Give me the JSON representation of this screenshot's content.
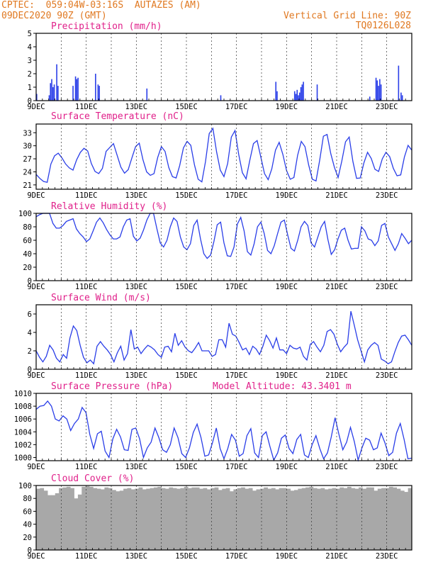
{
  "header": {
    "station": "CPTEC:  059:04W-03:16S  AUTAZES (AM)",
    "datetime": "09DEC2020 90Z (GMT)",
    "grid_line": "Vertical Grid Line: 90Z",
    "code": "TQ0126L028"
  },
  "colors": {
    "header": "#e07820",
    "title": "#e0208a",
    "series": "#2a3ee8",
    "cloud": "#a8a8a8",
    "axis": "#000000"
  },
  "x_tick_labels": [
    "9DEC",
    "11DEC",
    "13DEC",
    "15DEC",
    "17DEC",
    "19DEC",
    "21DEC",
    "23DEC"
  ],
  "model_altitude": "Model Altitude: 43.3401 m",
  "chart_data": [
    {
      "type": "bar",
      "title": "Precipitation (mm/h)",
      "ylim": [
        0,
        5
      ],
      "yticks": [
        0,
        1,
        2,
        3,
        4,
        5
      ],
      "x_start_day": 9,
      "bars": [
        [
          9.0,
          0.5
        ],
        [
          9.5,
          0.4
        ],
        [
          9.55,
          1.3
        ],
        [
          9.6,
          1.6
        ],
        [
          9.65,
          1.0
        ],
        [
          9.7,
          1.2
        ],
        [
          9.8,
          2.7
        ],
        [
          9.85,
          1.1
        ],
        [
          10.45,
          1.1
        ],
        [
          10.55,
          1.8
        ],
        [
          10.6,
          1.6
        ],
        [
          10.65,
          1.7
        ],
        [
          11.35,
          2.0
        ],
        [
          11.45,
          1.2
        ],
        [
          11.5,
          1.1
        ],
        [
          13.4,
          0.9
        ],
        [
          16.35,
          0.4
        ],
        [
          18.55,
          1.4
        ],
        [
          18.6,
          0.7
        ],
        [
          19.3,
          0.7
        ],
        [
          19.35,
          0.5
        ],
        [
          19.4,
          0.8
        ],
        [
          19.45,
          0.4
        ],
        [
          19.5,
          0.6
        ],
        [
          19.55,
          1.0
        ],
        [
          19.6,
          1.2
        ],
        [
          19.65,
          1.4
        ],
        [
          20.2,
          1.2
        ],
        [
          22.3,
          0.3
        ],
        [
          22.55,
          1.7
        ],
        [
          22.6,
          1.5
        ],
        [
          22.65,
          1.1
        ],
        [
          22.7,
          1.6
        ],
        [
          22.75,
          1.2
        ],
        [
          23.45,
          2.6
        ],
        [
          23.55,
          0.6
        ],
        [
          23.6,
          0.4
        ]
      ]
    },
    {
      "type": "line",
      "title": "Surface Temperature (nC)",
      "ylim": [
        20,
        35
      ],
      "yticks": [
        21,
        24,
        27,
        30,
        33
      ],
      "x_start_day": 9,
      "values": [
        23.4,
        22.5,
        21.8,
        21.6,
        25.8,
        27.7,
        28.3,
        27.2,
        25.8,
        24.9,
        24.4,
        26.8,
        28.5,
        29.4,
        28.8,
        25.9,
        24.1,
        23.6,
        24.8,
        28.7,
        29.6,
        30.5,
        27.8,
        25.1,
        23.7,
        24.5,
        27.2,
        29.8,
        30.6,
        26.8,
        24.0,
        23.2,
        23.6,
        27.3,
        29.8,
        28.7,
        25.0,
        22.9,
        22.6,
        25.5,
        29.5,
        31.0,
        30.1,
        25.6,
        22.3,
        21.7,
        26.4,
        32.8,
        34.0,
        28.6,
        24.4,
        22.9,
        25.9,
        32.0,
        33.5,
        28.0,
        23.8,
        22.4,
        26.6,
        30.5,
        31.2,
        27.4,
        23.6,
        22.2,
        24.7,
        29.0,
        30.8,
        28.0,
        24.3,
        22.3,
        22.7,
        27.8,
        31.0,
        29.8,
        25.6,
        22.3,
        21.9,
        26.7,
        32.2,
        32.6,
        28.2,
        25.0,
        22.7,
        26.5,
        30.9,
        32.0,
        26.4,
        22.5,
        22.6,
        26.1,
        28.5,
        27.1,
        24.6,
        24.1,
        27.0,
        28.5,
        27.5,
        24.8,
        23.1,
        23.3,
        27.4,
        30.1,
        29.0
      ]
    },
    {
      "type": "line",
      "title": "Relative Humidity (%)",
      "ylim": [
        0,
        100
      ],
      "yticks": [
        0,
        20,
        40,
        60,
        80,
        100
      ],
      "x_start_day": 9,
      "values": [
        95,
        98,
        100,
        100,
        100,
        85,
        78,
        78,
        82,
        88,
        90,
        92,
        77,
        70,
        65,
        58,
        62,
        74,
        87,
        93,
        86,
        76,
        68,
        62,
        62,
        65,
        80,
        90,
        92,
        66,
        59,
        63,
        75,
        90,
        100,
        100,
        77,
        56,
        50,
        60,
        80,
        93,
        88,
        65,
        50,
        46,
        55,
        82,
        90,
        62,
        40,
        33,
        38,
        58,
        83,
        87,
        56,
        37,
        36,
        50,
        84,
        94,
        74,
        43,
        38,
        55,
        80,
        87,
        70,
        45,
        40,
        52,
        70,
        87,
        90,
        68,
        48,
        44,
        60,
        80,
        88,
        82,
        56,
        50,
        65,
        80,
        88,
        61,
        39,
        46,
        62,
        75,
        78,
        60,
        47,
        48,
        48,
        80,
        74,
        62,
        60,
        52,
        59,
        82,
        85,
        65,
        55,
        45,
        55,
        70,
        63,
        55,
        60
      ]
    },
    {
      "type": "line",
      "title": "Surface Wind (m/s)",
      "ylim": [
        0,
        7
      ],
      "yticks": [
        0,
        2,
        4,
        6
      ],
      "x_start_day": 9,
      "values": [
        2.0,
        1.3,
        0.8,
        1.4,
        2.6,
        2.1,
        1.2,
        0.8,
        1.6,
        1.2,
        3.4,
        4.7,
        4.2,
        2.6,
        1.3,
        0.7,
        1.0,
        0.6,
        2.5,
        3.0,
        2.5,
        2.1,
        1.6,
        0.8,
        1.8,
        2.5,
        1.0,
        1.7,
        4.3,
        2.2,
        2.4,
        1.7,
        2.2,
        2.6,
        2.4,
        2.1,
        1.6,
        1.3,
        2.4,
        2.5,
        1.9,
        3.9,
        2.6,
        3.1,
        2.4,
        2.0,
        1.8,
        2.3,
        2.9,
        2.0,
        2.0,
        2.0,
        1.4,
        1.6,
        3.2,
        3.2,
        2.4,
        5.0,
        3.8,
        3.6,
        2.9,
        2.1,
        2.3,
        1.6,
        2.5,
        2.2,
        1.6,
        2.5,
        3.7,
        3.1,
        2.3,
        3.4,
        2.1,
        2.1,
        1.7,
        2.6,
        2.3,
        2.2,
        2.4,
        1.4,
        1.0,
        2.7,
        3.0,
        2.4,
        1.9,
        2.6,
        4.1,
        4.3,
        3.8,
        2.7,
        1.9,
        2.4,
        2.8,
        6.3,
        4.8,
        3.2,
        2.0,
        0.8,
        2.1,
        2.6,
        2.9,
        2.6,
        1.1,
        0.9,
        0.6,
        0.8,
        1.9,
        2.9,
        3.6,
        3.7,
        3.2,
        2.6
      ]
    },
    {
      "type": "line",
      "title": "Surface Pressure (hPa)",
      "ylim": [
        999.5,
        1010
      ],
      "yticks": [
        1000,
        1002,
        1004,
        1006,
        1008,
        1010
      ],
      "x_start_day": 9,
      "values": [
        1007.5,
        1008.0,
        1008.1,
        1008.8,
        1008.0,
        1006.0,
        1005.7,
        1006.5,
        1006.0,
        1004.2,
        1005.3,
        1006.0,
        1007.8,
        1007.0,
        1003.6,
        1001.4,
        1003.7,
        1004.1,
        1001.0,
        1000.0,
        1002.9,
        1004.4,
        1003.2,
        1001.2,
        1001.1,
        1004.4,
        1004.6,
        1002.9,
        1000.0,
        1001.5,
        1002.4,
        1004.6,
        1003.1,
        1001.2,
        1000.8,
        1002.0,
        1004.6,
        1003.1,
        1000.6,
        1000.0,
        1001.5,
        1003.9,
        1005.2,
        1003.1,
        1000.2,
        1000.4,
        1002.3,
        1004.6,
        1001.4,
        999.8,
        1001.4,
        1003.6,
        1002.7,
        1000.2,
        1000.6,
        1003.4,
        1004.5,
        1000.7,
        1000.0,
        1003.4,
        1004.0,
        1001.7,
        999.6,
        1000.7,
        1003.0,
        1003.5,
        1001.4,
        1000.6,
        1002.8,
        1003.6,
        1000.4,
        1000.0,
        1002.0,
        1003.4,
        1001.4,
        999.8,
        1000.7,
        1003.2,
        1006.2,
        1003.6,
        1001.2,
        1002.4,
        1004.7,
        1002.5,
        999.6,
        1001.5,
        1003.0,
        1002.7,
        1001.2,
        1001.5,
        1003.8,
        1002.3,
        1000.3,
        1000.8,
        1003.8,
        1005.3,
        1002.8,
        999.8,
        999.9
      ]
    },
    {
      "type": "bar",
      "title": "Cloud Cover (%)",
      "ylim": [
        0,
        100
      ],
      "yticks": [
        0,
        20,
        40,
        60,
        80,
        100
      ],
      "x_start_day": 9,
      "values": [
        95,
        96,
        92,
        85,
        85,
        88,
        96,
        97,
        98,
        96,
        80,
        86,
        98,
        99,
        98,
        96,
        95,
        94,
        97,
        96,
        93,
        91,
        92,
        95,
        96,
        94,
        95,
        97,
        94,
        95,
        96,
        97,
        98,
        96,
        95,
        97,
        96,
        95,
        96,
        98,
        96,
        97,
        97,
        95,
        96,
        94,
        96,
        97,
        93,
        95,
        96,
        91,
        94,
        96,
        97,
        95,
        96,
        92,
        94,
        95,
        97,
        95,
        96,
        94,
        96,
        96,
        95,
        92,
        93,
        95,
        96,
        97,
        98,
        96,
        95,
        96,
        94,
        95,
        96,
        95,
        97,
        96,
        98,
        96,
        95,
        97,
        95,
        97,
        97,
        92,
        95,
        96,
        96,
        98,
        97,
        95,
        92,
        90,
        96
      ]
    }
  ]
}
